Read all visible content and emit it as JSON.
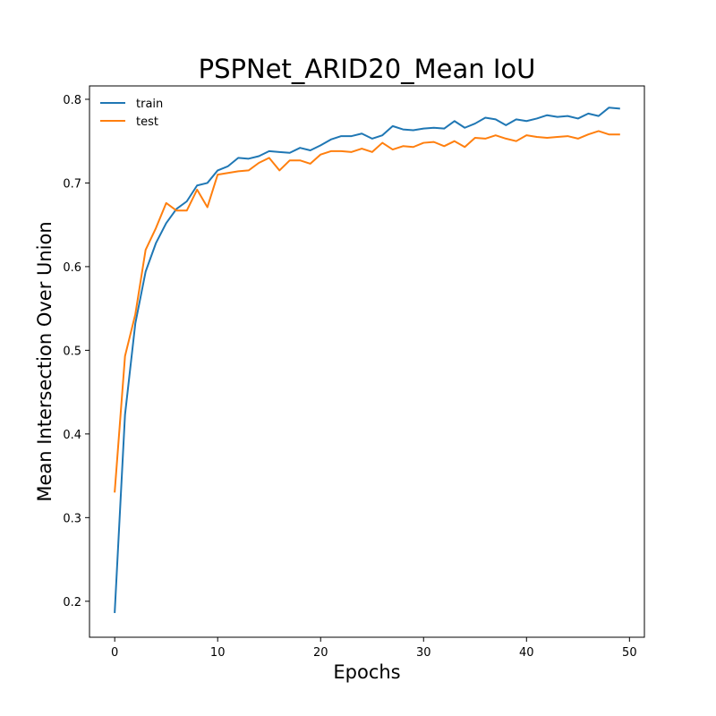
{
  "chart_data": {
    "type": "line",
    "title": "PSPNet_ARID20_Mean IoU",
    "xlabel": "Epochs",
    "ylabel": "Mean Intersection Over Union",
    "xlim": [
      -2.45,
      51.45
    ],
    "ylim": [
      0.157,
      0.816
    ],
    "xticks": [
      0,
      10,
      20,
      30,
      40,
      50
    ],
    "yticks": [
      0.2,
      0.3,
      0.4,
      0.5,
      0.6,
      0.7,
      0.8
    ],
    "xtick_labels": [
      "0",
      "10",
      "20",
      "30",
      "40",
      "50"
    ],
    "ytick_labels": [
      "0.2",
      "0.3",
      "0.4",
      "0.5",
      "0.6",
      "0.7",
      "0.8"
    ],
    "grid": false,
    "legend_position": "top-left",
    "x": [
      0,
      1,
      2,
      3,
      4,
      5,
      6,
      7,
      8,
      9,
      10,
      11,
      12,
      13,
      14,
      15,
      16,
      17,
      18,
      19,
      20,
      21,
      22,
      23,
      24,
      25,
      26,
      27,
      28,
      29,
      30,
      31,
      32,
      33,
      34,
      35,
      36,
      37,
      38,
      39,
      40,
      41,
      42,
      43,
      44,
      45,
      46,
      47,
      48,
      49
    ],
    "series": [
      {
        "name": "train",
        "color": "#1f77b4",
        "values": [
          0.187,
          0.423,
          0.532,
          0.594,
          0.628,
          0.652,
          0.669,
          0.678,
          0.697,
          0.7,
          0.715,
          0.72,
          0.73,
          0.729,
          0.732,
          0.738,
          0.737,
          0.736,
          0.742,
          0.739,
          0.745,
          0.752,
          0.756,
          0.756,
          0.759,
          0.753,
          0.757,
          0.768,
          0.764,
          0.763,
          0.765,
          0.766,
          0.765,
          0.774,
          0.766,
          0.771,
          0.778,
          0.776,
          0.769,
          0.776,
          0.774,
          0.777,
          0.781,
          0.779,
          0.78,
          0.777,
          0.783,
          0.78,
          0.79,
          0.789
        ]
      },
      {
        "name": "test",
        "color": "#ff7f0e",
        "values": [
          0.331,
          0.493,
          0.543,
          0.62,
          0.646,
          0.676,
          0.667,
          0.667,
          0.692,
          0.671,
          0.71,
          0.712,
          0.714,
          0.715,
          0.724,
          0.73,
          0.715,
          0.727,
          0.727,
          0.723,
          0.734,
          0.738,
          0.738,
          0.737,
          0.741,
          0.737,
          0.748,
          0.74,
          0.744,
          0.743,
          0.748,
          0.749,
          0.744,
          0.75,
          0.743,
          0.754,
          0.753,
          0.757,
          0.753,
          0.75,
          0.757,
          0.755,
          0.754,
          0.755,
          0.756,
          0.753,
          0.758,
          0.762,
          0.758,
          0.758
        ]
      }
    ]
  }
}
